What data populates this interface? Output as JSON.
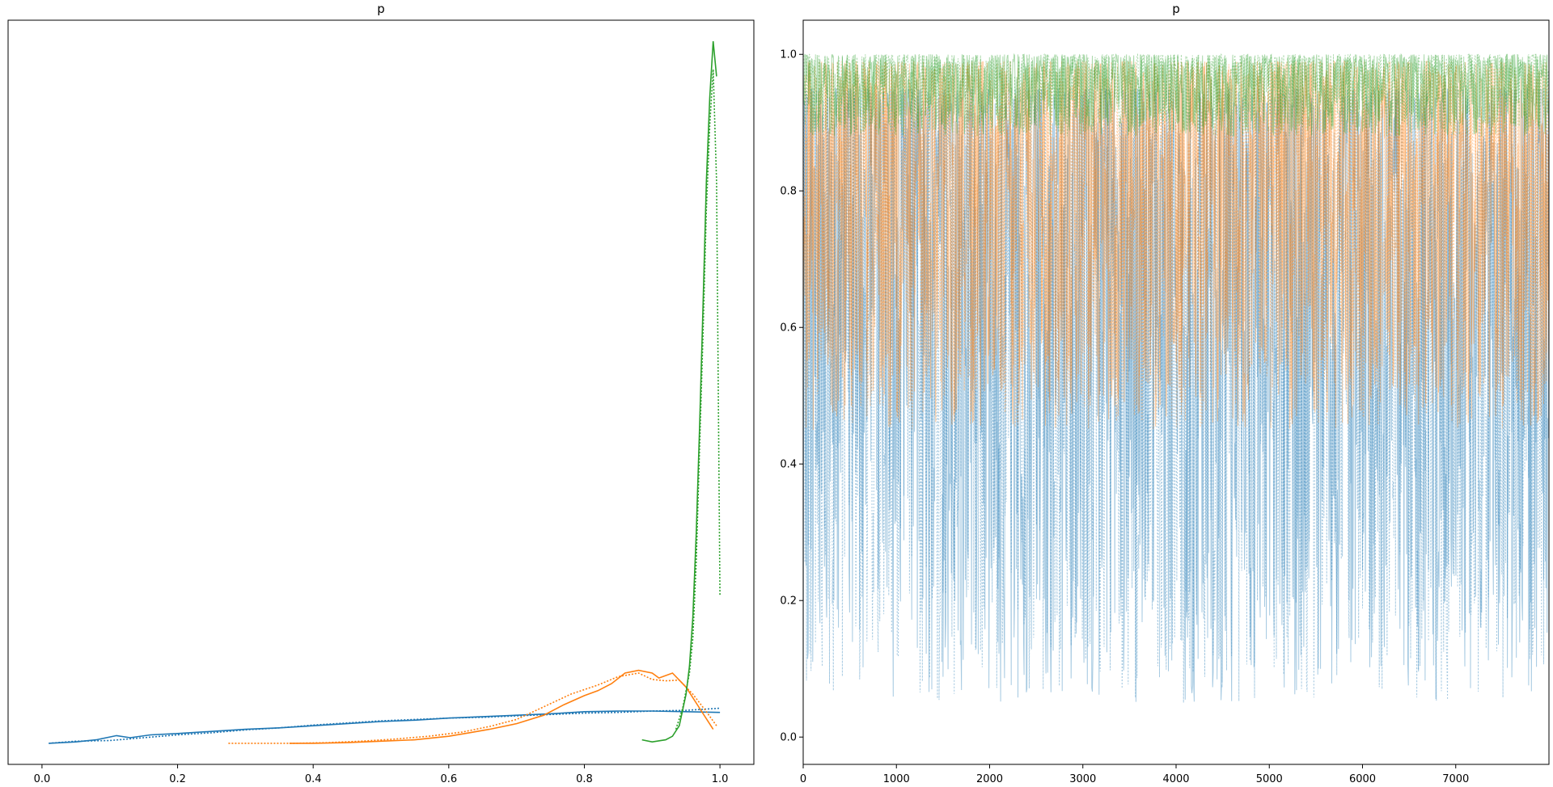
{
  "chart_data": [
    {
      "type": "line",
      "title": "p",
      "xlabel": "",
      "ylabel": "",
      "xlim": [
        -0.05,
        1.05
      ],
      "ylim": [
        -0.03,
        1.03
      ],
      "xticks": [
        0.0,
        0.2,
        0.4,
        0.6,
        0.8,
        1.0
      ],
      "xtick_labels": [
        "0.0",
        "0.2",
        "0.4",
        "0.6",
        "0.8",
        "1.0"
      ],
      "yticks": [],
      "grid": false,
      "colors": [
        "#1f77b4",
        "#ff7f0e",
        "#2ca02c"
      ],
      "series": [
        {
          "color": "#1f77b4",
          "style": "solid",
          "x": [
            0.01,
            0.05,
            0.08,
            0.11,
            0.13,
            0.16,
            0.2,
            0.25,
            0.3,
            0.35,
            0.4,
            0.45,
            0.5,
            0.55,
            0.6,
            0.65,
            0.7,
            0.75,
            0.8,
            0.85,
            0.9,
            0.95,
            1.0
          ],
          "y": [
            0.0,
            0.002,
            0.005,
            0.011,
            0.008,
            0.012,
            0.014,
            0.017,
            0.02,
            0.022,
            0.025,
            0.028,
            0.031,
            0.033,
            0.036,
            0.038,
            0.04,
            0.042,
            0.045,
            0.046,
            0.046,
            0.045,
            0.044
          ]
        },
        {
          "color": "#1f77b4",
          "style": "dotted",
          "x": [
            0.01,
            0.05,
            0.1,
            0.15,
            0.2,
            0.25,
            0.3,
            0.35,
            0.4,
            0.45,
            0.5,
            0.55,
            0.6,
            0.65,
            0.7,
            0.75,
            0.8,
            0.85,
            0.9,
            0.95,
            1.0
          ],
          "y": [
            0.0,
            0.003,
            0.004,
            0.008,
            0.012,
            0.015,
            0.019,
            0.022,
            0.026,
            0.029,
            0.032,
            0.034,
            0.036,
            0.037,
            0.039,
            0.041,
            0.043,
            0.044,
            0.046,
            0.047,
            0.05
          ]
        },
        {
          "color": "#ff7f0e",
          "style": "solid",
          "x": [
            0.365,
            0.4,
            0.45,
            0.5,
            0.55,
            0.6,
            0.63,
            0.66,
            0.7,
            0.74,
            0.77,
            0.8,
            0.82,
            0.84,
            0.86,
            0.88,
            0.9,
            0.91,
            0.93,
            0.95,
            0.97,
            0.99
          ],
          "y": [
            0.0,
            0.0,
            0.001,
            0.003,
            0.005,
            0.01,
            0.015,
            0.02,
            0.028,
            0.04,
            0.055,
            0.068,
            0.075,
            0.085,
            0.1,
            0.104,
            0.1,
            0.093,
            0.1,
            0.08,
            0.05,
            0.02
          ]
        },
        {
          "color": "#ff7f0e",
          "style": "dotted",
          "x": [
            0.275,
            0.32,
            0.37,
            0.42,
            0.47,
            0.52,
            0.57,
            0.62,
            0.66,
            0.7,
            0.74,
            0.78,
            0.82,
            0.85,
            0.88,
            0.9,
            0.92,
            0.94,
            0.96,
            0.98,
            0.995
          ],
          "y": [
            0.0,
            0.0,
            0.0,
            0.001,
            0.003,
            0.006,
            0.01,
            0.016,
            0.024,
            0.034,
            0.052,
            0.07,
            0.083,
            0.095,
            0.1,
            0.091,
            0.089,
            0.09,
            0.07,
            0.045,
            0.025
          ]
        },
        {
          "color": "#2ca02c",
          "style": "solid",
          "x": [
            0.885,
            0.9,
            0.92,
            0.93,
            0.94,
            0.95,
            0.955,
            0.96,
            0.965,
            0.97,
            0.975,
            0.98,
            0.985,
            0.99,
            0.995
          ],
          "y": [
            0.005,
            0.002,
            0.005,
            0.01,
            0.025,
            0.07,
            0.11,
            0.18,
            0.3,
            0.45,
            0.62,
            0.8,
            0.92,
            1.0,
            0.95
          ]
        },
        {
          "color": "#2ca02c",
          "style": "dotted",
          "x": [
            0.935,
            0.945,
            0.955,
            0.96,
            0.965,
            0.97,
            0.975,
            0.98,
            0.985,
            0.99,
            0.995,
            1.0
          ],
          "y": [
            0.02,
            0.05,
            0.1,
            0.15,
            0.26,
            0.42,
            0.58,
            0.76,
            0.88,
            0.96,
            0.8,
            0.21
          ]
        }
      ]
    },
    {
      "type": "line",
      "title": "p",
      "xlabel": "",
      "ylabel": "",
      "xlim": [
        0,
        8000
      ],
      "ylim": [
        -0.04,
        1.05
      ],
      "xticks": [
        0,
        1000,
        2000,
        3000,
        4000,
        5000,
        6000,
        7000
      ],
      "xtick_labels": [
        "0",
        "1000",
        "2000",
        "3000",
        "4000",
        "5000",
        "6000",
        "7000"
      ],
      "yticks": [
        0.0,
        0.2,
        0.4,
        0.6,
        0.8,
        1.0
      ],
      "ytick_labels": [
        "0.0",
        "0.2",
        "0.4",
        "0.6",
        "0.8",
        "1.0"
      ],
      "grid": false,
      "n_draws": 8000,
      "series": [
        {
          "color": "#1f77b4",
          "style": "solid",
          "opacity": 0.4,
          "typical_min": 0.05,
          "typical_max": 0.95
        },
        {
          "color": "#1f77b4",
          "style": "dotted",
          "opacity": 0.4,
          "typical_min": 0.05,
          "typical_max": 0.95
        },
        {
          "color": "#ff7f0e",
          "style": "solid",
          "opacity": 0.4,
          "typical_min": 0.45,
          "typical_max": 0.99
        },
        {
          "color": "#ff7f0e",
          "style": "dotted",
          "opacity": 0.4,
          "typical_min": 0.45,
          "typical_max": 0.99
        },
        {
          "color": "#2ca02c",
          "style": "solid",
          "opacity": 0.4,
          "typical_min": 0.88,
          "typical_max": 1.0
        },
        {
          "color": "#2ca02c",
          "style": "dotted",
          "opacity": 0.4,
          "typical_min": 0.88,
          "typical_max": 1.0
        }
      ]
    }
  ]
}
